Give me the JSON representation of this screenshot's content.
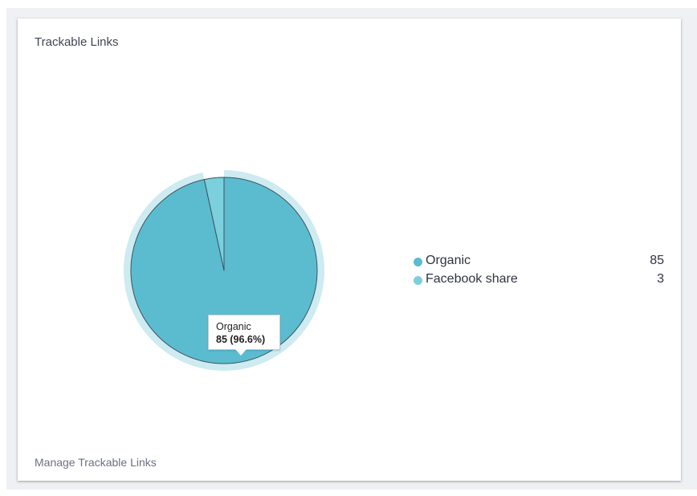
{
  "card": {
    "title": "Trackable Links",
    "footer_link": "Manage Trackable Links"
  },
  "colors": {
    "organic": "#5bbcd0",
    "facebook_share": "#7ccfdd",
    "halo": "#cdebf0",
    "slice_border": "#3b5560"
  },
  "chart_data": {
    "type": "pie",
    "title": "Trackable Links",
    "categories": [
      "Organic",
      "Facebook share"
    ],
    "values": [
      85,
      3
    ],
    "hovered_index": 0,
    "legend_position": "right"
  },
  "legend": [
    {
      "label": "Organic",
      "value": "85"
    },
    {
      "label": "Facebook share",
      "value": "3"
    }
  ],
  "tooltip": {
    "label": "Organic",
    "value": "85 (96.6%)"
  }
}
